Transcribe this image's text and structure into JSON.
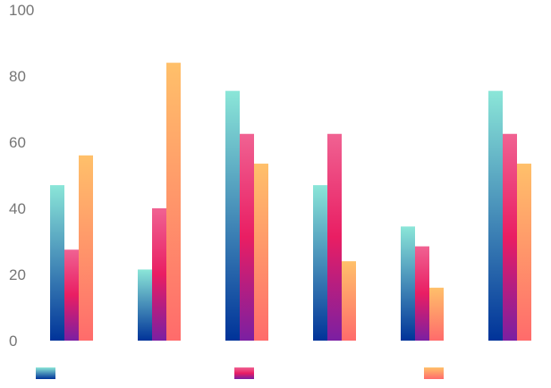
{
  "chart_data": {
    "type": "bar",
    "categories": [
      "",
      "",
      "",
      "",
      "",
      ""
    ],
    "ylim": [
      0,
      100
    ],
    "y_ticks": [
      0,
      20,
      40,
      60,
      80,
      100
    ],
    "y_tick_labels": [
      "0",
      "20",
      "40",
      "60",
      "80",
      "100"
    ],
    "grid": false,
    "legend_position": "bottom",
    "series": [
      {
        "values": [
          47,
          21.5,
          75.5,
          47,
          34.5,
          75.5
        ],
        "colors": [
          "#8be6d8",
          "#003399"
        ]
      },
      {
        "values": [
          27.5,
          40,
          62.5,
          62.5,
          28.5,
          62.5
        ],
        "colors": [
          "#f06292",
          "#e91e63",
          "#7b1fa2"
        ]
      },
      {
        "values": [
          56,
          84,
          53.5,
          24,
          16,
          53.5
        ],
        "colors": [
          "#ffc06a",
          "#ff6b6b"
        ]
      }
    ]
  }
}
